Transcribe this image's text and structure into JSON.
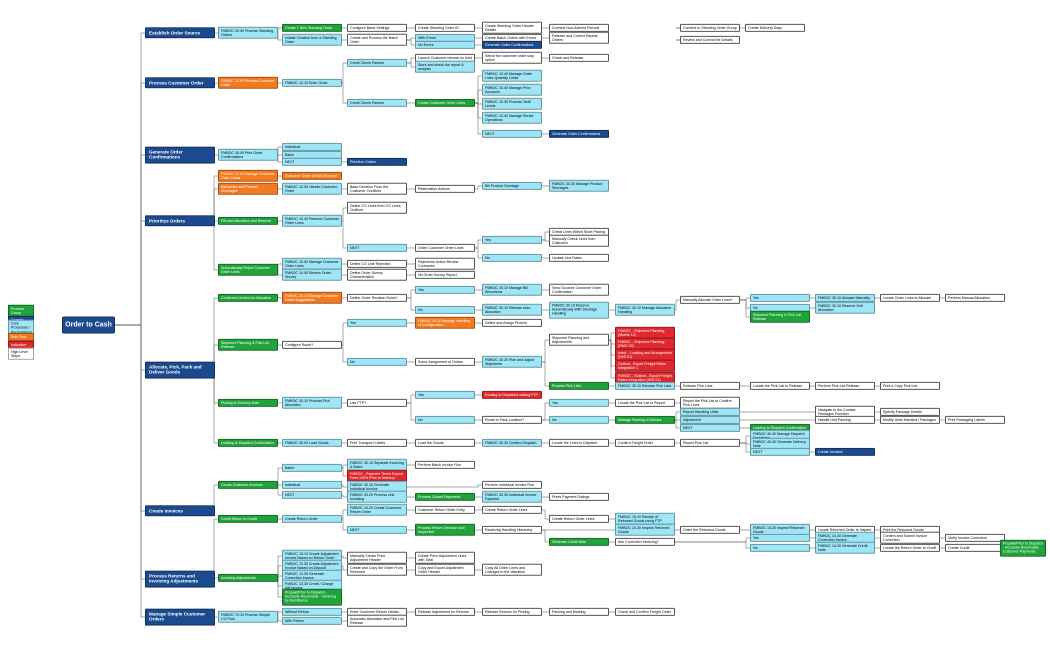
{
  "legend": [
    {
      "label": "Process Group"
    },
    {
      "label": "Domain"
    },
    {
      "label": "Core Processes / Permutations"
    },
    {
      "label": "Sub-Flow"
    },
    {
      "label": "Indication"
    },
    {
      "label": "High Level Steps"
    }
  ],
  "nodes": [
    {
      "label": "Order to Cash"
    },
    {
      "label": "Establish Order Source"
    },
    {
      "label": "Process Customer Order"
    },
    {
      "label": "Generate Order Confirmations"
    },
    {
      "label": "Prioritize Orders"
    },
    {
      "label": "Allocate, Pick, Pack and Deliver Goods"
    },
    {
      "label": "Create Invoices"
    },
    {
      "label": "Process Returns and Invoicing Adjustments"
    },
    {
      "label": "Manage Simple Customer Orders"
    },
    {
      "label": "FMBOC 20.00 Process Standing Orders"
    },
    {
      "label": "FMBOC 10.00 Process Customer Order"
    },
    {
      "label": "FMBOC 30.00 Print Order Confirmations"
    },
    {
      "label": "FMBOC 10.00 Manage Customer Order Holds"
    },
    {
      "label": "Backorder and Product Shortages"
    },
    {
      "label": "Fill Line Allocation and Reserve"
    },
    {
      "label": "Automatically Reject Customer Order Lines"
    },
    {
      "label": "Confirmed Orders for Allocation"
    },
    {
      "label": "Shipment Planning & Pick List Release"
    },
    {
      "label": "Picking to Delivery Note"
    },
    {
      "label": "Loading to Dispatch Confirmation"
    },
    {
      "label": "Create Customer Invoices"
    },
    {
      "label": "Credit Return to Credit"
    },
    {
      "label": "Invoicing Adjustments"
    },
    {
      "label": "FMBOC 70.10 Process Simple CO Flow"
    },
    {
      "label": "Create 1 New Standing Order"
    },
    {
      "label": "Initiate Creation from a Standing Order"
    },
    {
      "label": "FMBOC 10.10 Enter Order"
    },
    {
      "label": "Individual"
    },
    {
      "label": "Batch"
    },
    {
      "label": "NEXT"
    },
    {
      "label": "Customer Order Details Blocked"
    },
    {
      "label": "FMBOC 10.30 Handle Customer Order"
    },
    {
      "label": "FMBOC 10.40 Reserve Customer Order Lines"
    },
    {
      "label": "FMBOC 10.50 Manage Customer Order Lines"
    },
    {
      "label": "FMBOC 10.50 Review Order Survey"
    },
    {
      "label": "FMBOC 20.10 Manage Customer Order Suggestions"
    },
    {
      "label": "Configure Route?"
    },
    {
      "label": "FMBOC 30.10 Process Pick Allocation"
    },
    {
      "label": "FMBOC 40.00 Load Goods"
    },
    {
      "label": "Batch"
    },
    {
      "label": "Individual"
    },
    {
      "label": "NEXT"
    },
    {
      "label": "Create Return Order"
    },
    {
      "label": "FMBOC 13.10 Create Adjustment Invoice Based on Return Order"
    },
    {
      "label": "FMBOC 13.30 Create Adjustment Invoice Based on Deposit"
    },
    {
      "label": "FMBOC 13.30 Generate Correction Invoice"
    },
    {
      "label": "FMBOC 13.30 Credit / Charge Adj Invoice"
    },
    {
      "label": "Prepaid/Prior to Dispatch - Accounts Receivable - Invoicing by Remittance"
    },
    {
      "label": "Without Return"
    },
    {
      "label": "With Return"
    },
    {
      "label": "Configure Basic Settings"
    },
    {
      "label": "Create and Process the Batch Order"
    },
    {
      "label": "Credit Check Passed"
    },
    {
      "label": "Credit Check Passed"
    },
    {
      "label": "Prioritize Orders"
    },
    {
      "label": "Base Decision From the Customer Creditors"
    },
    {
      "label": "Define CO Lines from CO Lines Outlines"
    },
    {
      "label": "NEXT"
    },
    {
      "label": "Define CO Line Rejection"
    },
    {
      "label": "Define Order Survey Characteristics"
    },
    {
      "label": "Define Order Revision Rules?"
    },
    {
      "label": "Yes"
    },
    {
      "label": "No"
    },
    {
      "label": "Use FTP?"
    },
    {
      "label": "Print Transport Labels"
    },
    {
      "label": "FMBOC 30.10 Separate Invoicing & Batch"
    },
    {
      "label": "FMBOC - Payment Terms Expect Fees 100% Prior to Delivery"
    },
    {
      "label": "FMBOC 30.10 Generate Individual Invoice"
    },
    {
      "label": "FMBOC 30.20 Process Unit Invoicing"
    },
    {
      "label": "FMBOC 10.20 Create Customer Return Order"
    },
    {
      "label": "NEXT"
    },
    {
      "label": "Manually Create Price Adjustment Header"
    },
    {
      "label": "Create and Copy the Order From Returned"
    },
    {
      "label": "Enter Customer Return Details"
    },
    {
      "label": "Automatic Allocation and Pick List Release"
    },
    {
      "label": "Create Standing Order ID"
    },
    {
      "label": "With Errors"
    },
    {
      "label": "No Errors"
    },
    {
      "label": "Launch Customer release on hold"
    },
    {
      "label": "Store and check the report & analysis"
    },
    {
      "label": "Create Customer Order Lines"
    },
    {
      "label": "Reservation Actions"
    },
    {
      "label": "Order Customer Order Lines"
    },
    {
      "label": "Rejections Action Review Contractor"
    },
    {
      "label": "No Order Survey Report"
    },
    {
      "label": "Yes"
    },
    {
      "label": "No"
    },
    {
      "label": "FMBOC 10.10 Manage Handling of Configuration"
    },
    {
      "label": "Some Assignment of Orders"
    },
    {
      "label": "Yes"
    },
    {
      "label": "No"
    },
    {
      "label": "Load the Goods"
    },
    {
      "label": "Perform Batch Invoice Run"
    },
    {
      "label": "Process Closed Payments"
    },
    {
      "label": "Customer Return Order Entry"
    },
    {
      "label": "Process Return Decision and Inspection"
    },
    {
      "label": "Create Price Adjustment Lines with Total"
    },
    {
      "label": "Copy and Export Adjustment Order Header"
    },
    {
      "label": "Release Adjustment for Returns"
    },
    {
      "label": "Create Standing Order Header Details"
    },
    {
      "label": "Create Batch Orders with Errors"
    },
    {
      "label": "Generate Order Confirmations"
    },
    {
      "label": "Select the customer order stop option"
    },
    {
      "label": "FMBOC 10.40 Manage Order Lines Quantity Limits"
    },
    {
      "label": "FMBOC 10.40 Manage Prior Accounts"
    },
    {
      "label": "FMBOC 10.30 Process Tariff Levels"
    },
    {
      "label": "FMBOC 10.40 Manage Rental Operations"
    },
    {
      "label": "NEXT"
    },
    {
      "label": "Bill Product Shortage"
    },
    {
      "label": "Yes"
    },
    {
      "label": "No"
    },
    {
      "label": "FMBOC 30.10 Manage Bill Allocations"
    },
    {
      "label": "FMBOC 30.10 Release Auto Allocation"
    },
    {
      "label": "Define and Assign Pickers"
    },
    {
      "label": "FMBOC 30.20 Plan and Adjust Shipments"
    },
    {
      "label": "Routing to Dispatch/Loading FTP"
    },
    {
      "label": "Route to Pack Location?"
    },
    {
      "label": "FMBOC 40.30 Confirm Dispatch"
    },
    {
      "label": "Perform Individual Invoice Run"
    },
    {
      "label": "FMBOC 30.30 Individual Invoice Payment"
    },
    {
      "label": "Create Return Order Lines"
    },
    {
      "label": "Receiving Handling Hierarchy"
    },
    {
      "label": "Copy All Order Lines and Changes to the Valuation"
    },
    {
      "label": "Release Returns for Picking"
    },
    {
      "label": "Connect Non-Actived Periods"
    },
    {
      "label": "Release and Correct Repeat Orders"
    },
    {
      "label": "Check and Release"
    },
    {
      "label": "Generate Order Confirmations"
    },
    {
      "label": "FMBOC 30.30 Manage Product Shortages"
    },
    {
      "label": "Check Lines Within Short Picking"
    },
    {
      "label": "Manually Check Lines from Collection"
    },
    {
      "label": "Update Line Dates"
    },
    {
      "label": "Send Sources Customer Order Confirmation"
    },
    {
      "label": "FMBOC 30.10 Reserve Automatically With Shortage Handling"
    },
    {
      "label": "Shipment Planning and Adjustments"
    },
    {
      "label": "Process Pick Lists"
    },
    {
      "label": "Yes"
    },
    {
      "label": "No"
    },
    {
      "label": "Locate the Lines to Dispatch"
    },
    {
      "label": "Prints Payment Dialogs"
    },
    {
      "label": "Create Return Order Lines"
    },
    {
      "label": "Generate Credit Note"
    },
    {
      "label": "Packing and Marking"
    },
    {
      "label": "FMBOC - Shipment Planning (Mobile 12)"
    },
    {
      "label": "FMBOC - Shipment Planning (RMO 02)"
    },
    {
      "label": "Interf. - Loading and Arrangement (IWS 01)"
    },
    {
      "label": "Outbnd - Export Freight Rates Integration 1"
    },
    {
      "label": "FMBOC - Outbnd - Export Freight Rates Integration (IWS 01)"
    },
    {
      "label": "FMBOC 30.10 Release Pick Lists"
    },
    {
      "label": "Locate the Pick List to Report"
    },
    {
      "label": "Manage Packing of Articles"
    },
    {
      "label": "Confirm Freight Order"
    },
    {
      "label": "FMBOC 30.10 Manage Allocation Handling"
    },
    {
      "label": "Check and Confirm Freight Order"
    },
    {
      "label": "Connect to Standing Order Group"
    },
    {
      "label": "Review and Correct the Details"
    },
    {
      "label": "Manually Allocate Order Lines?"
    },
    {
      "label": "Yes"
    },
    {
      "label": "No"
    },
    {
      "label": "Shipment Planning in Pick List Release"
    },
    {
      "label": "Release Pick Lists"
    },
    {
      "label": "Report the Pick List to Confirm Pick Lines"
    },
    {
      "label": "Report Handling Units"
    },
    {
      "label": "Adjustment"
    },
    {
      "label": "NEXT"
    },
    {
      "label": "Loading to Dispatch Confirmation"
    },
    {
      "label": "Report Pick List"
    },
    {
      "label": "FMBOC 40.40 Manage Dispatch Deviations"
    },
    {
      "label": "FMBOC 40.40 Generate Delivery Note"
    },
    {
      "label": "NEXT"
    },
    {
      "label": "Create Invoices"
    },
    {
      "label": "Create Delivery Days"
    },
    {
      "label": "FMBOC 30.10 Allocate Manually"
    },
    {
      "label": "FMBOC 30.10 Reserve Soft Allocation"
    },
    {
      "label": "Locate Order Lines to Allocate"
    },
    {
      "label": "Perform Manual Allocation"
    },
    {
      "label": "Locate the Pick List to Release"
    },
    {
      "label": "Perform Pick List Release"
    },
    {
      "label": "Print a Copy Pick List"
    },
    {
      "label": "Navigate to the Contact Packages Function"
    },
    {
      "label": "Specify Package Details"
    },
    {
      "label": "Handle Unit Packing"
    },
    {
      "label": "Modify Units Handled / Packages"
    },
    {
      "label": "Print Packaging Labels"
    },
    {
      "label": "FMBOC 10.20 Receipt of Returned Goods using FTP"
    },
    {
      "label": "FMBOC 10.30 Inspect Returned Goods"
    },
    {
      "label": "Order the Returned Goods"
    },
    {
      "label": "FMBOC 10.20 Inspect Returned Goods"
    },
    {
      "label": "Locate Returned Order to Inspect"
    },
    {
      "label": "Print the Returned Goods"
    },
    {
      "label": "Ask Correction Invoicing?"
    },
    {
      "label": "Yes"
    },
    {
      "label": "No"
    },
    {
      "label": "FMBOC 14.30 Generate Correction Invoice"
    },
    {
      "label": "Confirm and Submit Invoice Correction"
    },
    {
      "label": "Verify Invoice Correction"
    },
    {
      "label": "FMBOC 14.30 Generate Credit Note"
    },
    {
      "label": "Locate the Return Order to Credit"
    },
    {
      "label": "Create Credit"
    },
    {
      "label": "Prepaid/Prior to Dispatch - Accounts Receivable - Customer Payments"
    }
  ]
}
